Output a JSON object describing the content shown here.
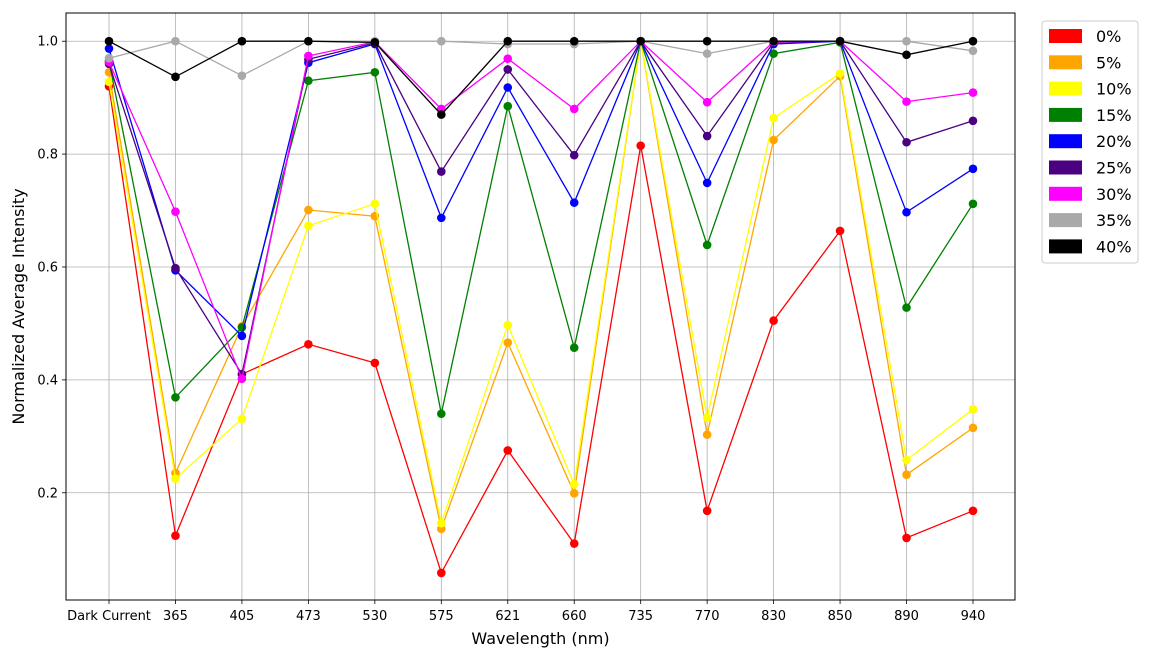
{
  "chart_data": {
    "type": "line",
    "title": "",
    "xlabel": "Wavelength (nm)",
    "ylabel": "Normalized Average Intensity",
    "categories": [
      "Dark Current",
      "365",
      "405",
      "473",
      "530",
      "575",
      "621",
      "660",
      "735",
      "770",
      "830",
      "850",
      "890",
      "940"
    ],
    "ylim": [
      0.01,
      1.05
    ],
    "yticks": [
      0.2,
      0.4,
      0.6,
      0.8,
      1.0
    ],
    "ytick_labels": [
      "0.2",
      "0.4",
      "0.6",
      "0.8",
      "1.0"
    ],
    "grid": true,
    "legend_position": "outside-top-right",
    "series": [
      {
        "name": "0%",
        "color": "#ff0000",
        "values": [
          0.92,
          0.124,
          0.41,
          0.463,
          0.43,
          0.058,
          0.275,
          0.11,
          0.815,
          0.168,
          0.505,
          0.664,
          0.12,
          0.168
        ]
      },
      {
        "name": "5%",
        "color": "#ffa500",
        "values": [
          0.945,
          0.235,
          0.495,
          0.701,
          0.69,
          0.136,
          0.466,
          0.199,
          1.0,
          0.303,
          0.825,
          0.938,
          0.232,
          0.315
        ]
      },
      {
        "name": "10%",
        "color": "#ffff00",
        "values": [
          0.928,
          0.225,
          0.331,
          0.673,
          0.712,
          0.146,
          0.497,
          0.215,
          1.0,
          0.333,
          0.864,
          0.943,
          0.258,
          0.348
        ]
      },
      {
        "name": "15%",
        "color": "#008000",
        "values": [
          0.965,
          0.369,
          0.493,
          0.93,
          0.945,
          0.34,
          0.885,
          0.457,
          1.0,
          0.639,
          0.978,
          0.998,
          0.528,
          0.712
        ]
      },
      {
        "name": "20%",
        "color": "#0000ff",
        "values": [
          0.987,
          0.594,
          0.478,
          0.962,
          0.995,
          0.687,
          0.918,
          0.714,
          1.0,
          0.749,
          0.995,
          1.0,
          0.697,
          0.774
        ]
      },
      {
        "name": "25%",
        "color": "#4b0082",
        "values": [
          0.96,
          0.598,
          0.41,
          0.968,
          0.997,
          0.769,
          0.95,
          0.798,
          1.0,
          0.832,
          0.998,
          1.0,
          0.821,
          0.859
        ]
      },
      {
        "name": "30%",
        "color": "#ff00ff",
        "values": [
          0.963,
          0.698,
          0.402,
          0.974,
          0.999,
          0.88,
          0.969,
          0.88,
          1.0,
          0.892,
          0.999,
          1.0,
          0.893,
          0.909
        ]
      },
      {
        "name": "35%",
        "color": "#a9a9a9",
        "values": [
          0.97,
          1.0,
          0.939,
          1.0,
          1.0,
          1.0,
          0.995,
          0.995,
          1.0,
          0.978,
          1.0,
          1.0,
          1.0,
          0.983
        ]
      },
      {
        "name": "40%",
        "color": "#000000",
        "values": [
          1.0,
          0.937,
          1.0,
          1.0,
          0.998,
          0.87,
          1.0,
          1.0,
          1.0,
          1.0,
          1.0,
          1.0,
          0.976,
          1.0
        ]
      }
    ]
  }
}
